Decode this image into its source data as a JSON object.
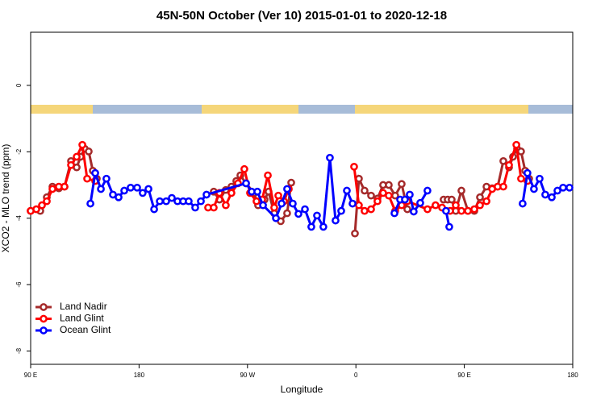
{
  "chart_data": {
    "type": "line",
    "title": "45N-50N October (Ver 10)   2015-01-01 to 2020-12-18",
    "xlabel": "Longitude",
    "ylabel": "XCO2 - MLO trend (ppm)",
    "xlim": [
      90,
      540
    ],
    "ylim": [
      -8.4,
      1.6
    ],
    "xticks": [
      {
        "value": 90,
        "label": "90 E"
      },
      {
        "value": 180,
        "label": "180"
      },
      {
        "value": 270,
        "label": "90 W"
      },
      {
        "value": 360,
        "label": "0"
      },
      {
        "value": 450,
        "label": "90 E"
      },
      {
        "value": 540,
        "label": "180"
      }
    ],
    "yticks": [
      0,
      -2,
      -4,
      -6,
      -8
    ],
    "legend": "bottomleft",
    "series": [
      {
        "name": "Land Nadir",
        "color": "#a52a2a",
        "x": [
          90,
          98,
          103.4,
          108.1,
          113.4,
          118.1,
          123.5,
          128.2,
          131.5,
          134.9,
          138.2,
          141.6,
          144.9,
          null,
          242,
          246.7,
          252,
          256.7,
          260.7,
          264.1,
          268.8,
          275.5,
          278.8,
          284.2,
          287.5,
          292.2,
          297.6,
          302.9,
          306.3,
          null,
          359.2,
          362.5,
          367.2,
          372.6,
          377.9,
          382.6,
          387.3,
          392.6,
          398,
          402.7,
          null,
          432.8,
          436.2,
          439.5,
          442.9,
          447.6,
          453,
          458.3,
          463,
          468.4,
          473.1,
          477.7,
          482.4,
          487.1,
          490.4,
          493.8,
          497.1,
          500.5,
          503.8
        ],
        "values": [
          -3.78,
          -3.78,
          -3.37,
          -3.05,
          -3.1,
          -3.05,
          -2.28,
          -2.47,
          -2.15,
          -1.91,
          -1.99,
          -2.57,
          -2.81,
          null,
          -3.2,
          -3.44,
          -3.15,
          -3.05,
          -2.88,
          -2.71,
          -2.95,
          -3.24,
          -3.61,
          -3.44,
          -3.2,
          -3.85,
          -4.09,
          -3.85,
          -2.93,
          null,
          -4.46,
          -2.81,
          -3.17,
          -3.32,
          -3.41,
          -3.0,
          -3.0,
          -3.32,
          -2.97,
          -3.73,
          null,
          -3.44,
          -3.44,
          -3.44,
          -3.78,
          -3.17,
          -3.78,
          -3.78,
          -3.37,
          -3.05,
          -3.1,
          -3.05,
          -2.28,
          -2.47,
          -2.15,
          -1.91,
          -1.99,
          -2.57,
          -2.81
        ]
      },
      {
        "name": "Land Glint",
        "color": "#ff0000",
        "x": [
          90,
          94.7,
          99.4,
          103.4,
          108.1,
          113.4,
          118.1,
          123.5,
          128.2,
          132.9,
          136.9,
          143.6,
          null,
          237.3,
          242,
          246.7,
          252,
          256.7,
          262.1,
          267.4,
          272.1,
          277.5,
          282.2,
          286.9,
          292.2,
          295.6,
          300.3,
          304.3,
          null,
          358.5,
          362.5,
          367.2,
          372.6,
          377.9,
          382.6,
          387.3,
          392.6,
          398,
          402.7,
          419.4,
          426.1,
          431.5,
          438.2,
          442.9,
          447.6,
          453,
          458.3,
          463,
          468.4,
          473.1,
          477.7,
          482.4,
          487.1,
          493.2,
          497.1,
          502.5
        ],
        "values": [
          -3.78,
          -3.73,
          -3.61,
          -3.49,
          -3.12,
          -3.05,
          -3.05,
          -2.4,
          -2.15,
          -1.79,
          -2.81,
          -2.88,
          null,
          -3.68,
          -3.68,
          -3.24,
          -3.61,
          -3.24,
          -2.95,
          -2.52,
          -3.24,
          -3.49,
          -3.44,
          -2.71,
          -3.68,
          -3.32,
          -3.49,
          -3.12,
          null,
          -2.45,
          -3.61,
          -3.78,
          -3.73,
          -3.49,
          -3.24,
          -3.32,
          -3.78,
          -3.61,
          -3.49,
          -3.73,
          -3.61,
          -3.68,
          -3.78,
          -3.61,
          -3.78,
          -3.78,
          -3.73,
          -3.61,
          -3.49,
          -3.12,
          -3.05,
          -3.05,
          -2.4,
          -1.79,
          -2.81,
          -2.88
        ]
      },
      {
        "name": "Ocean Glint",
        "color": "#0000ff",
        "x": [
          139.6,
          143.6,
          148.3,
          152.9,
          158.3,
          163,
          167.7,
          173,
          178.4,
          183,
          187.8,
          192.5,
          197.2,
          202.5,
          207.2,
          211.9,
          216.6,
          221.2,
          226.6,
          231.3,
          236,
          268.8,
          273.5,
          278.2,
          282.9,
          293.6,
          298.3,
          302.9,
          307.6,
          312.3,
          317.7,
          323,
          327.7,
          333,
          338.4,
          343.1,
          347.8,
          352.5,
          357.2,
          null,
          392,
          396.7,
          400.7,
          404.7,
          408,
          413.4,
          419.4,
          null,
          434.8,
          437.5,
          null,
          498.4,
          502.4,
          507.8,
          512.5,
          517.2,
          522.6,
          527.3,
          532,
          537.3
        ],
        "values": [
          -3.56,
          -2.64,
          -3.12,
          -2.81,
          -3.29,
          -3.37,
          -3.17,
          -3.08,
          -3.08,
          -3.24,
          -3.12,
          -3.73,
          -3.49,
          -3.49,
          -3.39,
          -3.49,
          -3.49,
          -3.49,
          -3.68,
          -3.49,
          -3.29,
          -2.95,
          -3.2,
          -3.2,
          -3.61,
          -4.0,
          -3.56,
          -3.12,
          -3.56,
          -3.87,
          -3.73,
          -4.26,
          -3.92,
          -4.26,
          -2.18,
          -4.07,
          -3.78,
          -3.17,
          -3.56,
          null,
          -3.85,
          -3.44,
          -3.44,
          -3.29,
          -3.8,
          -3.54,
          -3.17,
          null,
          -3.78,
          -4.26,
          null,
          -3.56,
          -2.64,
          -3.12,
          -2.81,
          -3.29,
          -3.37,
          -3.17,
          -3.08,
          -3.08
        ]
      }
    ]
  }
}
